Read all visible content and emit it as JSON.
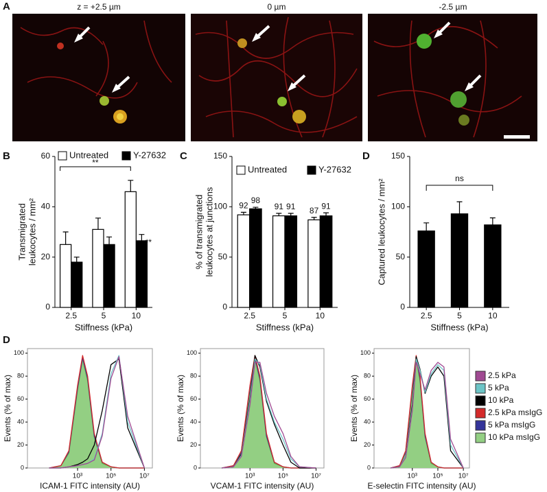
{
  "figure": {
    "panel_labels": [
      "A",
      "B",
      "C",
      "D",
      "D"
    ],
    "images": [
      {
        "title": "z = +2.5 µm"
      },
      {
        "title": "0 µm"
      },
      {
        "title": "-2.5 µm"
      }
    ]
  },
  "chart_data": [
    {
      "type": "bar",
      "categories": [
        "2.5",
        "5",
        "10"
      ],
      "xlabel": "Stiffness (kPa)",
      "ylabel": [
        "Transmigrated",
        "leukocytes / mm²"
      ],
      "ylim": [
        0,
        60
      ],
      "yticks": [
        0,
        20,
        40,
        60
      ],
      "legend": "top",
      "series": [
        {
          "name": "Untreated",
          "color": "#ffffff",
          "values": [
            25,
            31,
            46
          ],
          "errors": [
            5,
            4.5,
            4.5
          ]
        },
        {
          "name": "Y-27632",
          "color": "#000000",
          "values": [
            18,
            25,
            26.5
          ],
          "errors": [
            2,
            3,
            2.5
          ]
        }
      ],
      "annotations": [
        {
          "text": "**"
        },
        {
          "text": "**"
        }
      ]
    },
    {
      "type": "bar",
      "categories": [
        "2.5",
        "5",
        "10"
      ],
      "xlabel": "Stiffness (kPa)",
      "ylabel": [
        "% of transmigrated",
        "leukocytes at junctions"
      ],
      "ylim": [
        0,
        150
      ],
      "yticks": [
        0,
        50,
        100,
        150
      ],
      "legend": "top",
      "show_values": true,
      "series": [
        {
          "name": "Untreated",
          "color": "#ffffff",
          "values": [
            92,
            91,
            87
          ],
          "errors": [
            2.5,
            2.5,
            2.5
          ]
        },
        {
          "name": "Y-27632",
          "color": "#000000",
          "values": [
            98,
            91,
            91
          ],
          "errors": [
            1.5,
            2.5,
            3
          ]
        }
      ]
    },
    {
      "type": "bar",
      "categories": [
        "2.5",
        "5",
        "10"
      ],
      "xlabel": "Stiffness (kPa)",
      "ylabel": [
        "Captured leukocytes / mm²"
      ],
      "ylim": [
        0,
        150
      ],
      "yticks": [
        0,
        50,
        100,
        150
      ],
      "series": [
        {
          "color": "#000000",
          "values": [
            76,
            93,
            82
          ],
          "errors": [
            8,
            12,
            7
          ]
        }
      ],
      "annotations": [
        {
          "text": "ns"
        }
      ]
    },
    {
      "type": "histogram-line",
      "xlabel": "ICAM-1 FITC intensity (AU)",
      "ylabel": "Events (% of max)",
      "xscale": "log",
      "xlim": [
        1,
        30000000
      ],
      "ylim": [
        0,
        104
      ],
      "yticks": [
        0,
        20,
        40,
        60,
        80,
        100
      ],
      "xticks": [
        {
          "value": 1000,
          "label": "10³"
        },
        {
          "value": 100000,
          "label": "10⁵"
        },
        {
          "value": 10000000,
          "label": "10⁷"
        }
      ],
      "x": [
        20,
        100,
        300,
        1000,
        2000,
        4000,
        10000,
        30000,
        100000,
        300000,
        1000000,
        10000000
      ],
      "series": [
        {
          "name": "2.5 kPa",
          "color": "#a04a92",
          "values": [
            0,
            0,
            1,
            2,
            3,
            4,
            7,
            28,
            78,
            97,
            45,
            0
          ]
        },
        {
          "name": "5 kPa",
          "color": "#6cc4c6",
          "values": [
            0,
            0,
            1,
            2,
            3,
            4,
            8,
            30,
            82,
            98,
            40,
            0
          ]
        },
        {
          "name": "10 kPa",
          "color": "#000000",
          "values": [
            0,
            0,
            1,
            3,
            5,
            8,
            20,
            50,
            90,
            95,
            35,
            0
          ]
        },
        {
          "name": "2.5 kPa msIgG",
          "color": "#d42a2a",
          "values": [
            0,
            2,
            15,
            72,
            98,
            80,
            30,
            5,
            1,
            0,
            0,
            0
          ]
        },
        {
          "name": "5 kPa msIgG",
          "color": "#34349a",
          "values": [
            0,
            2,
            14,
            70,
            96,
            78,
            28,
            5,
            1,
            0,
            0,
            0
          ]
        },
        {
          "name": "10 kPa msIgG",
          "color": "#5bb050",
          "fill": "#93cf83",
          "values": [
            0,
            2,
            13,
            68,
            95,
            76,
            27,
            4,
            1,
            0,
            0,
            0
          ]
        }
      ]
    },
    {
      "type": "histogram-line",
      "xlabel": "VCAM-1 FITC intensity (AU)",
      "ylabel": "Events (% of max)",
      "xscale": "log",
      "xlim": [
        1,
        30000000
      ],
      "ylim": [
        0,
        104
      ],
      "yticks": [
        0,
        20,
        40,
        60,
        80,
        100
      ],
      "xticks": [
        {
          "value": 1000,
          "label": "10³"
        },
        {
          "value": 100000,
          "label": "10⁵"
        },
        {
          "value": 10000000,
          "label": "10⁷"
        }
      ],
      "x": [
        20,
        100,
        300,
        1000,
        2000,
        4000,
        10000,
        30000,
        100000,
        300000,
        1000000,
        10000000
      ],
      "series": [
        {
          "color": "#a04a92",
          "values": [
            0,
            1,
            10,
            55,
            92,
            92,
            65,
            45,
            30,
            10,
            1,
            0
          ]
        },
        {
          "color": "#6cc4c6",
          "values": [
            0,
            1,
            11,
            58,
            95,
            90,
            60,
            40,
            25,
            8,
            1,
            0
          ]
        },
        {
          "color": "#000000",
          "values": [
            0,
            1,
            12,
            60,
            98,
            88,
            58,
            38,
            20,
            5,
            0,
            0
          ]
        },
        {
          "color": "#d42a2a",
          "values": [
            0,
            2,
            15,
            72,
            98,
            80,
            30,
            5,
            1,
            0,
            0,
            0
          ]
        },
        {
          "color": "#34349a",
          "values": [
            0,
            2,
            14,
            70,
            96,
            78,
            28,
            5,
            1,
            0,
            0,
            0
          ]
        },
        {
          "color": "#5bb050",
          "fill": "#93cf83",
          "values": [
            0,
            2,
            13,
            68,
            95,
            76,
            27,
            4,
            1,
            0,
            0,
            0
          ]
        }
      ]
    },
    {
      "type": "histogram-line",
      "xlabel": "E-selectin FITC intensity (AU)",
      "ylabel": "Events (% of max)",
      "xscale": "log",
      "xlim": [
        1,
        30000000
      ],
      "ylim": [
        0,
        104
      ],
      "yticks": [
        0,
        20,
        40,
        60,
        80,
        100
      ],
      "xticks": [
        {
          "value": 1000,
          "label": "10³"
        },
        {
          "value": 100000,
          "label": "10⁵"
        },
        {
          "value": 10000000,
          "label": "10⁷"
        }
      ],
      "x": [
        20,
        100,
        300,
        1000,
        2000,
        4000,
        10000,
        30000,
        100000,
        300000,
        1000000,
        10000000
      ],
      "series": [
        {
          "color": "#a04a92",
          "values": [
            0,
            1,
            9,
            50,
            92,
            82,
            68,
            85,
            92,
            88,
            25,
            0
          ]
        },
        {
          "color": "#6cc4c6",
          "values": [
            0,
            1,
            10,
            52,
            95,
            85,
            66,
            82,
            90,
            85,
            20,
            0
          ]
        },
        {
          "color": "#000000",
          "values": [
            0,
            1,
            10,
            55,
            97,
            86,
            65,
            80,
            88,
            80,
            15,
            0
          ]
        },
        {
          "color": "#d42a2a",
          "values": [
            0,
            2,
            15,
            72,
            98,
            80,
            30,
            5,
            1,
            0,
            0,
            0
          ]
        },
        {
          "color": "#34349a",
          "values": [
            0,
            2,
            14,
            70,
            96,
            78,
            28,
            5,
            1,
            0,
            0,
            0
          ]
        },
        {
          "color": "#5bb050",
          "fill": "#93cf83",
          "values": [
            0,
            2,
            13,
            68,
            95,
            76,
            27,
            4,
            1,
            0,
            0,
            0
          ]
        }
      ]
    }
  ]
}
